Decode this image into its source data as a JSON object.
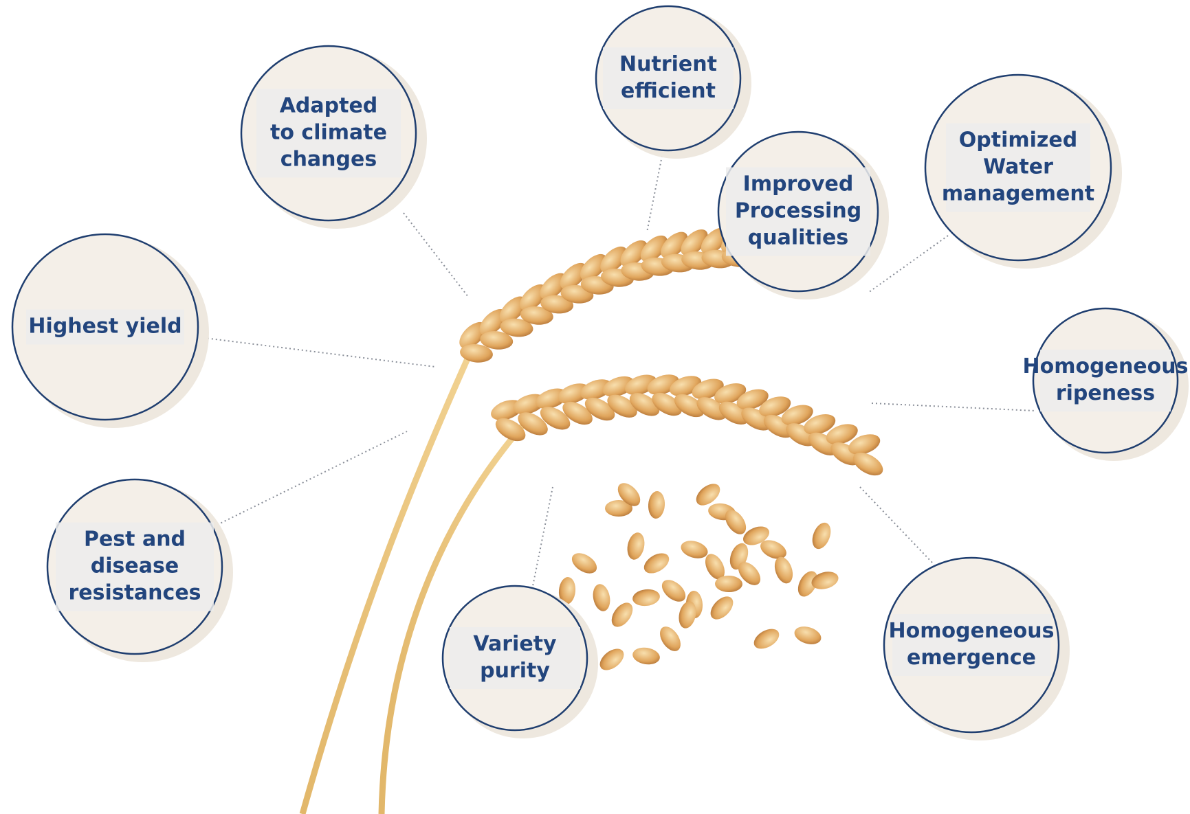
{
  "nodes": [
    {
      "label": [
        "Adapted",
        "to climate",
        "changes"
      ]
    },
    {
      "label": [
        "Nutrient",
        "efficient"
      ]
    },
    {
      "label": [
        "Improved",
        "Processing",
        "qualities"
      ]
    },
    {
      "label": [
        "Optimized",
        "Water",
        "management"
      ]
    },
    {
      "label": [
        "Highest yield"
      ]
    },
    {
      "label": [
        "Homogeneous",
        "ripeness"
      ]
    },
    {
      "label": [
        "Pest and",
        "disease",
        "resistances"
      ]
    },
    {
      "label": [
        "Variety",
        "purity"
      ]
    },
    {
      "label": [
        "Homogeneous",
        "emergence"
      ]
    }
  ]
}
